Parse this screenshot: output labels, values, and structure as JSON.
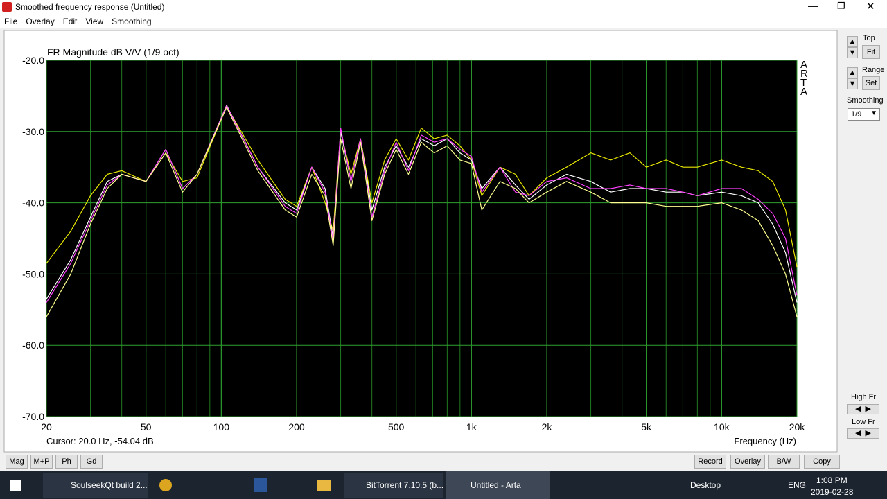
{
  "window": {
    "title": "Smoothed frequency response (Untitled)",
    "menu": [
      "File",
      "Overlay",
      "Edit",
      "View",
      "Smoothing"
    ]
  },
  "chart_data": {
    "type": "line",
    "title": "FR Magnitude dB V/V (1/9 oct)",
    "brand": "ARTA",
    "cursor": "Cursor: 20.0 Hz, -54.04 dB",
    "x_label": "Frequency (Hz)",
    "x_scale": "log",
    "grid": true,
    "background": "#000000",
    "grid_color": "#1f7a1f",
    "xlim": [
      20,
      20000
    ],
    "xticks": [
      20,
      50,
      100,
      200,
      500,
      {
        "value": 1000,
        "label": "1k"
      },
      {
        "value": 2000,
        "label": "2k"
      },
      {
        "value": 5000,
        "label": "5k"
      },
      {
        "value": 10000,
        "label": "10k"
      },
      {
        "value": 20000,
        "label": "20k"
      }
    ],
    "ylim": [
      -70,
      -20
    ],
    "yticks": [
      {
        "value": -70,
        "label": "-70.0"
      },
      {
        "value": -60,
        "label": "-60.0"
      },
      {
        "value": -50,
        "label": "-50.0"
      },
      {
        "value": -40,
        "label": "-40.0"
      },
      {
        "value": -30,
        "label": "-30.0"
      },
      {
        "value": -20,
        "label": "-20.0"
      }
    ],
    "x": [
      20,
      25,
      30,
      35,
      40,
      50,
      60,
      70,
      80,
      105,
      140,
      180,
      200,
      230,
      260,
      280,
      300,
      330,
      360,
      400,
      450,
      500,
      560,
      630,
      710,
      800,
      900,
      1000,
      1100,
      1300,
      1500,
      1700,
      2000,
      2400,
      3000,
      3600,
      4300,
      5000,
      6000,
      7000,
      8000,
      10000,
      12000,
      14000,
      16000,
      18000,
      20000
    ],
    "series": [
      {
        "color": "#e8e800",
        "values": [
          -48.5,
          -44,
          -39,
          -36,
          -35.5,
          -37,
          -33,
          -37,
          -36.5,
          -26.5,
          -34,
          -39.5,
          -40.5,
          -35,
          -40,
          -44,
          -30,
          -36,
          -31,
          -40,
          -34,
          -31,
          -34,
          -29.5,
          -31,
          -30.5,
          -32,
          -34,
          -39,
          -35,
          -36,
          -39,
          -36.5,
          -35,
          -33,
          -34,
          -33,
          -35,
          -34,
          -35,
          -35,
          -34,
          -35,
          -35.5,
          -37,
          -41,
          -49
        ]
      },
      {
        "color": "#ffffff",
        "values": [
          -53.5,
          -48,
          -42,
          -37,
          -36,
          -37,
          -32.5,
          -38,
          -36,
          -26.3,
          -35,
          -40,
          -41,
          -35,
          -38,
          -45,
          -30,
          -37,
          -31,
          -41,
          -35,
          -32,
          -35,
          -31,
          -32,
          -31,
          -33,
          -34,
          -38,
          -35,
          -37.5,
          -39.5,
          -37.5,
          -36,
          -37,
          -38.5,
          -38,
          -38,
          -38.5,
          -38.5,
          -39,
          -38.5,
          -39,
          -40,
          -43,
          -47,
          -54
        ]
      },
      {
        "color": "#ff40ff",
        "values": [
          -54,
          -48.5,
          -42.5,
          -37.5,
          -36,
          -37,
          -32.5,
          -38,
          -36,
          -26.4,
          -35,
          -40.5,
          -41.5,
          -35,
          -38.5,
          -45.5,
          -29.5,
          -37,
          -31,
          -42,
          -35.5,
          -31.5,
          -35.5,
          -30.5,
          -31.5,
          -31,
          -32.5,
          -33.5,
          -38.5,
          -35,
          -38.5,
          -39,
          -37,
          -36.5,
          -38,
          -38,
          -37.5,
          -38,
          -38,
          -38.5,
          -39,
          -38,
          -38,
          -39.5,
          -41.5,
          -45,
          -53
        ]
      },
      {
        "color": "#ffff90",
        "values": [
          -56,
          -50,
          -43,
          -38,
          -36,
          -37,
          -33,
          -38.5,
          -36,
          -26.6,
          -35.5,
          -41,
          -42,
          -36,
          -39,
          -46,
          -31,
          -38,
          -31.5,
          -42.5,
          -36,
          -32.5,
          -36,
          -31.5,
          -33,
          -32,
          -34,
          -34.5,
          -41,
          -37,
          -38,
          -40,
          -38.5,
          -37,
          -38.5,
          -40,
          -40,
          -40,
          -40.5,
          -40.5,
          -40.5,
          -40,
          -41,
          -42.5,
          -46,
          -50,
          -56
        ]
      }
    ]
  },
  "panel": {
    "top": "Top",
    "fit": "Fit",
    "range": "Range",
    "set": "Set",
    "smoothing": "Smoothing",
    "smoothing_value": "1/9",
    "high_fr": "High Fr",
    "low_fr": "Low Fr"
  },
  "buttons_left": [
    "Mag",
    "M+P",
    "Ph",
    "Gd"
  ],
  "buttons_right": [
    "Record",
    "Overlay",
    "B/W",
    "Copy"
  ],
  "taskbar": {
    "apps": [
      "SoulseekQt build 2...",
      "BitTorrent 7.10.5 (b...",
      "Untitled - Arta"
    ],
    "desktop": "Desktop",
    "lang": "ENG",
    "time": "1:08 PM",
    "date": "2019-02-28"
  }
}
